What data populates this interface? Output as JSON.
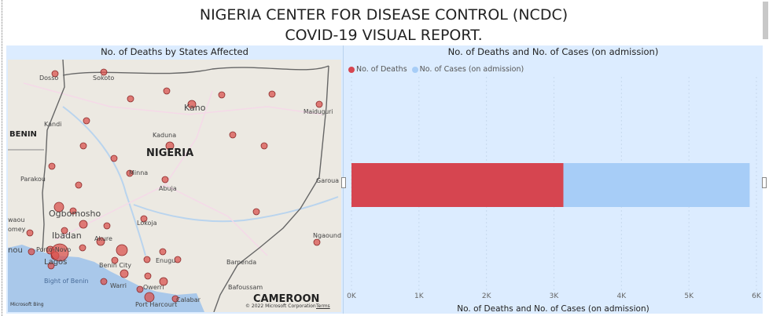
{
  "header": {
    "title_line1": "NIGERIA CENTER FOR DISEASE CONTROL (NCDC)",
    "title_line2": "COVID-19 VISUAL REPORT."
  },
  "map_panel": {
    "title": "No. of Deaths by States Affected",
    "country_labels": [
      "NIGERIA",
      "BENIN",
      "CAMEROON"
    ],
    "city_labels": [
      "Dosso",
      "Sokoto",
      "Kano",
      "Maiduguri",
      "Kandi",
      "Kaduna",
      "Parakou",
      "Minna",
      "Abuja",
      "Garoua",
      "Ogbomosho",
      "Ibadan",
      "Lokoja",
      "Akure",
      "Porto-Novo",
      "Lagos",
      "Enugu",
      "Benin City",
      "Bamenda",
      "Warri",
      "Owerri",
      "Bafoussam",
      "Port Harcourt",
      "Calabar",
      "Ngaoundé",
      "Bight of Benin"
    ],
    "edge_labels": [
      "waou",
      "omey",
      "nou"
    ],
    "bing_logo": "Microsoft Bing",
    "copyright": "© 2022 Microsoft Corporation",
    "terms": "Terms",
    "colors": {
      "bubble": "#d9534f",
      "water": "#a9c8ea",
      "land": "#ece9e2"
    }
  },
  "bar_panel": {
    "title": "No. of Deaths and No. of Cases (on admission)",
    "legend": [
      {
        "label": "No. of Deaths",
        "color": "#d64550"
      },
      {
        "label": "No. of Cases (on admission)",
        "color": "#a7cdf7"
      }
    ],
    "x_axis_title": "No. of Deaths and No. of Cases (on admission)"
  },
  "chart_data": {
    "type": "bar",
    "orientation": "horizontal",
    "stacked": true,
    "categories": [
      ""
    ],
    "series": [
      {
        "name": "No. of Deaths",
        "values": [
          3140
        ]
      },
      {
        "name": "No. of Cases (on admission)",
        "values": [
          2760
        ]
      }
    ],
    "x_ticks": [
      "0K",
      "1K",
      "2K",
      "3K",
      "4K",
      "5K",
      "6K"
    ],
    "xlim": [
      0,
      6000
    ],
    "xlabel": "No. of Deaths and No. of Cases (on admission)",
    "legend_position": "top-left",
    "grid": true
  }
}
